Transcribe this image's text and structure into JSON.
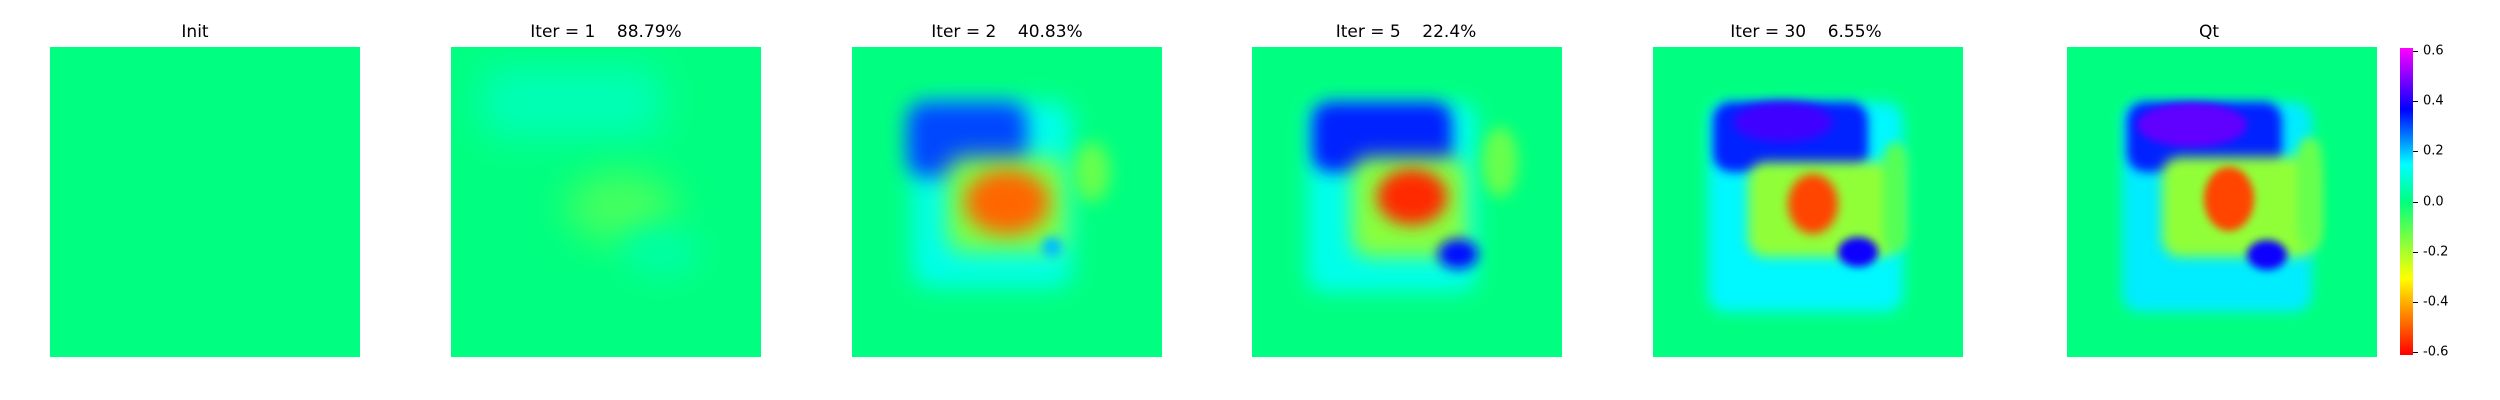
{
  "chart_data": {
    "type": "heatmap",
    "panels": [
      {
        "title": "Init"
      },
      {
        "title": "Iter = 1    88.79%"
      },
      {
        "title": "Iter = 2    40.83%"
      },
      {
        "title": "Iter = 5    22.4%"
      },
      {
        "title": "Iter = 30    6.55%"
      },
      {
        "title": "Qt"
      }
    ],
    "colorbar": {
      "colormap": "gist_rainbow",
      "vmin": -0.6,
      "vmax": 0.6,
      "ticks": [
        "0.6",
        "0.4",
        "0.2",
        "0.0",
        "-0.2",
        "-0.4",
        "-0.6"
      ]
    },
    "background_value": 0.0
  }
}
